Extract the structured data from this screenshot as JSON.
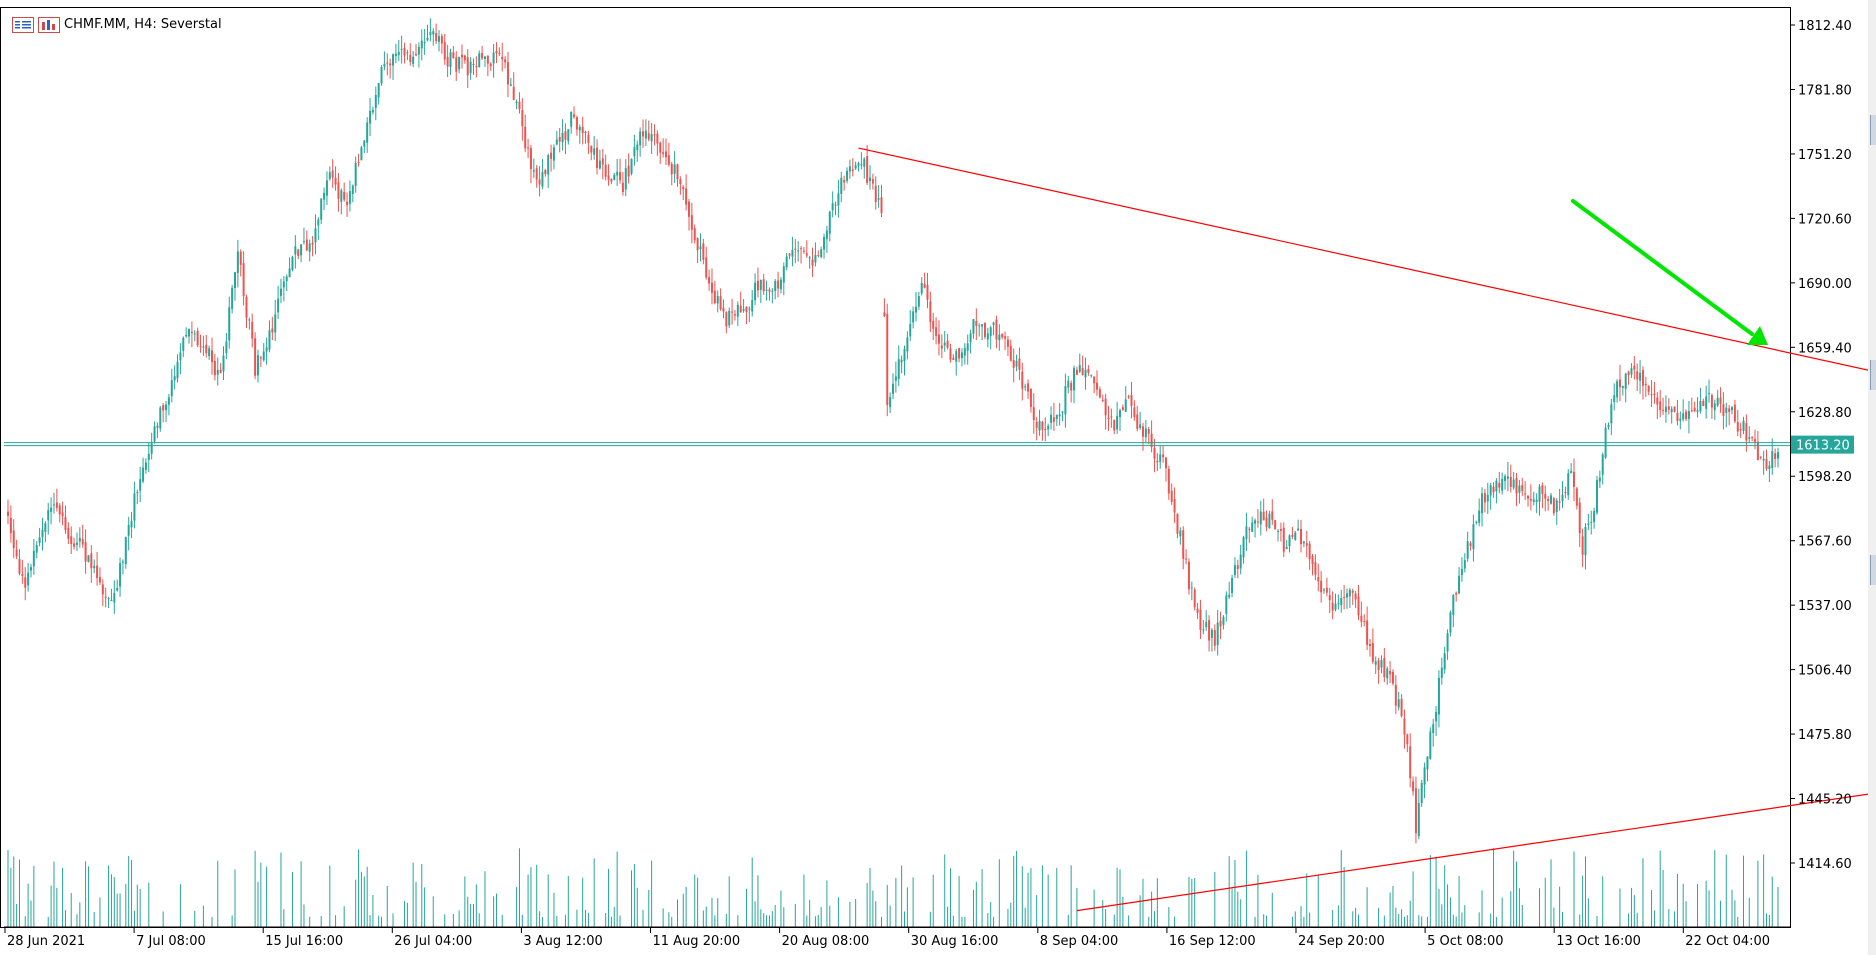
{
  "window": {
    "symbol_label": "CHMF.MM, H4:  Severstal",
    "symbol_icon": "chart-window-icon"
  },
  "colors": {
    "bull": "#26a69a",
    "bear": "#ef5350",
    "trendline": "#ff0000",
    "arrow": "#00e600",
    "price_line": "#26a69a",
    "volume": "#26a69a",
    "axis": "#000000"
  },
  "chart_data": {
    "type": "candlestick",
    "symbol": "CHMF.MM",
    "timeframe": "H4",
    "name": "Severstal",
    "y_ticks": [
      1812.4,
      1781.8,
      1751.2,
      1720.6,
      1690.0,
      1659.4,
      1628.8,
      1598.2,
      1567.6,
      1537.0,
      1506.4,
      1475.8,
      1445.2,
      1414.6
    ],
    "y_tick_labels": [
      "1812.40",
      "1781.80",
      "1751.20",
      "1720.60",
      "1690.00",
      "1659.40",
      "1628.80",
      "1598.20",
      "1567.60",
      "1537.00",
      "1506.40",
      "1475.80",
      "1445.20",
      "1414.60"
    ],
    "ylim": [
      1392.5,
      1823.3
    ],
    "x_labels": [
      "28 Jun 2021",
      "7 Jul 08:00",
      "15 Jul 16:00",
      "26 Jul 04:00",
      "3 Aug 12:00",
      "11 Aug 20:00",
      "20 Aug 08:00",
      "30 Aug 16:00",
      "8 Sep 04:00",
      "16 Sep 12:00",
      "24 Sep 20:00",
      "5 Oct 08:00",
      "13 Oct 16:00",
      "22 Oct 04:00"
    ],
    "current_price": 1613.2,
    "current_price_label": "1613.20",
    "anchors": [
      [
        0,
        1578
      ],
      [
        6,
        1545
      ],
      [
        14,
        1585
      ],
      [
        22,
        1570
      ],
      [
        30,
        1557
      ],
      [
        36,
        1535
      ],
      [
        42,
        1575
      ],
      [
        50,
        1618
      ],
      [
        56,
        1640
      ],
      [
        62,
        1668
      ],
      [
        68,
        1660
      ],
      [
        74,
        1645
      ],
      [
        80,
        1706
      ],
      [
        86,
        1650
      ],
      [
        92,
        1668
      ],
      [
        98,
        1700
      ],
      [
        106,
        1712
      ],
      [
        112,
        1740
      ],
      [
        118,
        1728
      ],
      [
        124,
        1760
      ],
      [
        130,
        1790
      ],
      [
        136,
        1802
      ],
      [
        142,
        1797
      ],
      [
        148,
        1808
      ],
      [
        154,
        1795
      ],
      [
        160,
        1792
      ],
      [
        166,
        1798
      ],
      [
        172,
        1795
      ],
      [
        178,
        1768
      ],
      [
        184,
        1735
      ],
      [
        190,
        1752
      ],
      [
        196,
        1767
      ],
      [
        202,
        1755
      ],
      [
        208,
        1742
      ],
      [
        214,
        1737
      ],
      [
        220,
        1760
      ],
      [
        226,
        1755
      ],
      [
        232,
        1742
      ],
      [
        238,
        1718
      ],
      [
        244,
        1688
      ],
      [
        250,
        1672
      ],
      [
        256,
        1678
      ],
      [
        262,
        1690
      ],
      [
        268,
        1688
      ],
      [
        274,
        1708
      ],
      [
        280,
        1698
      ],
      [
        286,
        1722
      ],
      [
        292,
        1743
      ],
      [
        298,
        1745
      ],
      [
        304,
        1722
      ],
      [
        306,
        1632
      ],
      [
        312,
        1662
      ],
      [
        318,
        1688
      ],
      [
        324,
        1660
      ],
      [
        330,
        1655
      ],
      [
        336,
        1670
      ],
      [
        342,
        1668
      ],
      [
        348,
        1660
      ],
      [
        354,
        1640
      ],
      [
        360,
        1618
      ],
      [
        366,
        1630
      ],
      [
        372,
        1650
      ],
      [
        378,
        1645
      ],
      [
        384,
        1622
      ],
      [
        390,
        1632
      ],
      [
        396,
        1617
      ],
      [
        402,
        1605
      ],
      [
        408,
        1568
      ],
      [
        414,
        1530
      ],
      [
        420,
        1521
      ],
      [
        426,
        1548
      ],
      [
        432,
        1576
      ],
      [
        438,
        1578
      ],
      [
        444,
        1566
      ],
      [
        450,
        1570
      ],
      [
        456,
        1548
      ],
      [
        462,
        1536
      ],
      [
        468,
        1545
      ],
      [
        474,
        1515
      ],
      [
        480,
        1505
      ],
      [
        486,
        1480
      ],
      [
        490,
        1433
      ],
      [
        496,
        1482
      ],
      [
        502,
        1532
      ],
      [
        508,
        1565
      ],
      [
        514,
        1590
      ],
      [
        520,
        1597
      ],
      [
        526,
        1592
      ],
      [
        532,
        1590
      ],
      [
        538,
        1585
      ],
      [
        544,
        1598
      ],
      [
        548,
        1565
      ],
      [
        552,
        1585
      ],
      [
        558,
        1635
      ],
      [
        564,
        1650
      ],
      [
        570,
        1640
      ],
      [
        576,
        1630
      ],
      [
        582,
        1628
      ],
      [
        588,
        1632
      ],
      [
        594,
        1635
      ],
      [
        600,
        1627
      ],
      [
        606,
        1617
      ],
      [
        612,
        1602
      ],
      [
        616,
        1613
      ]
    ],
    "trendlines": [
      {
        "from": [
          296,
          1754
        ],
        "to": [
          651,
          1646
        ]
      },
      {
        "from": [
          372,
          1392
        ],
        "to": [
          651,
          1449
        ]
      }
    ]
  }
}
